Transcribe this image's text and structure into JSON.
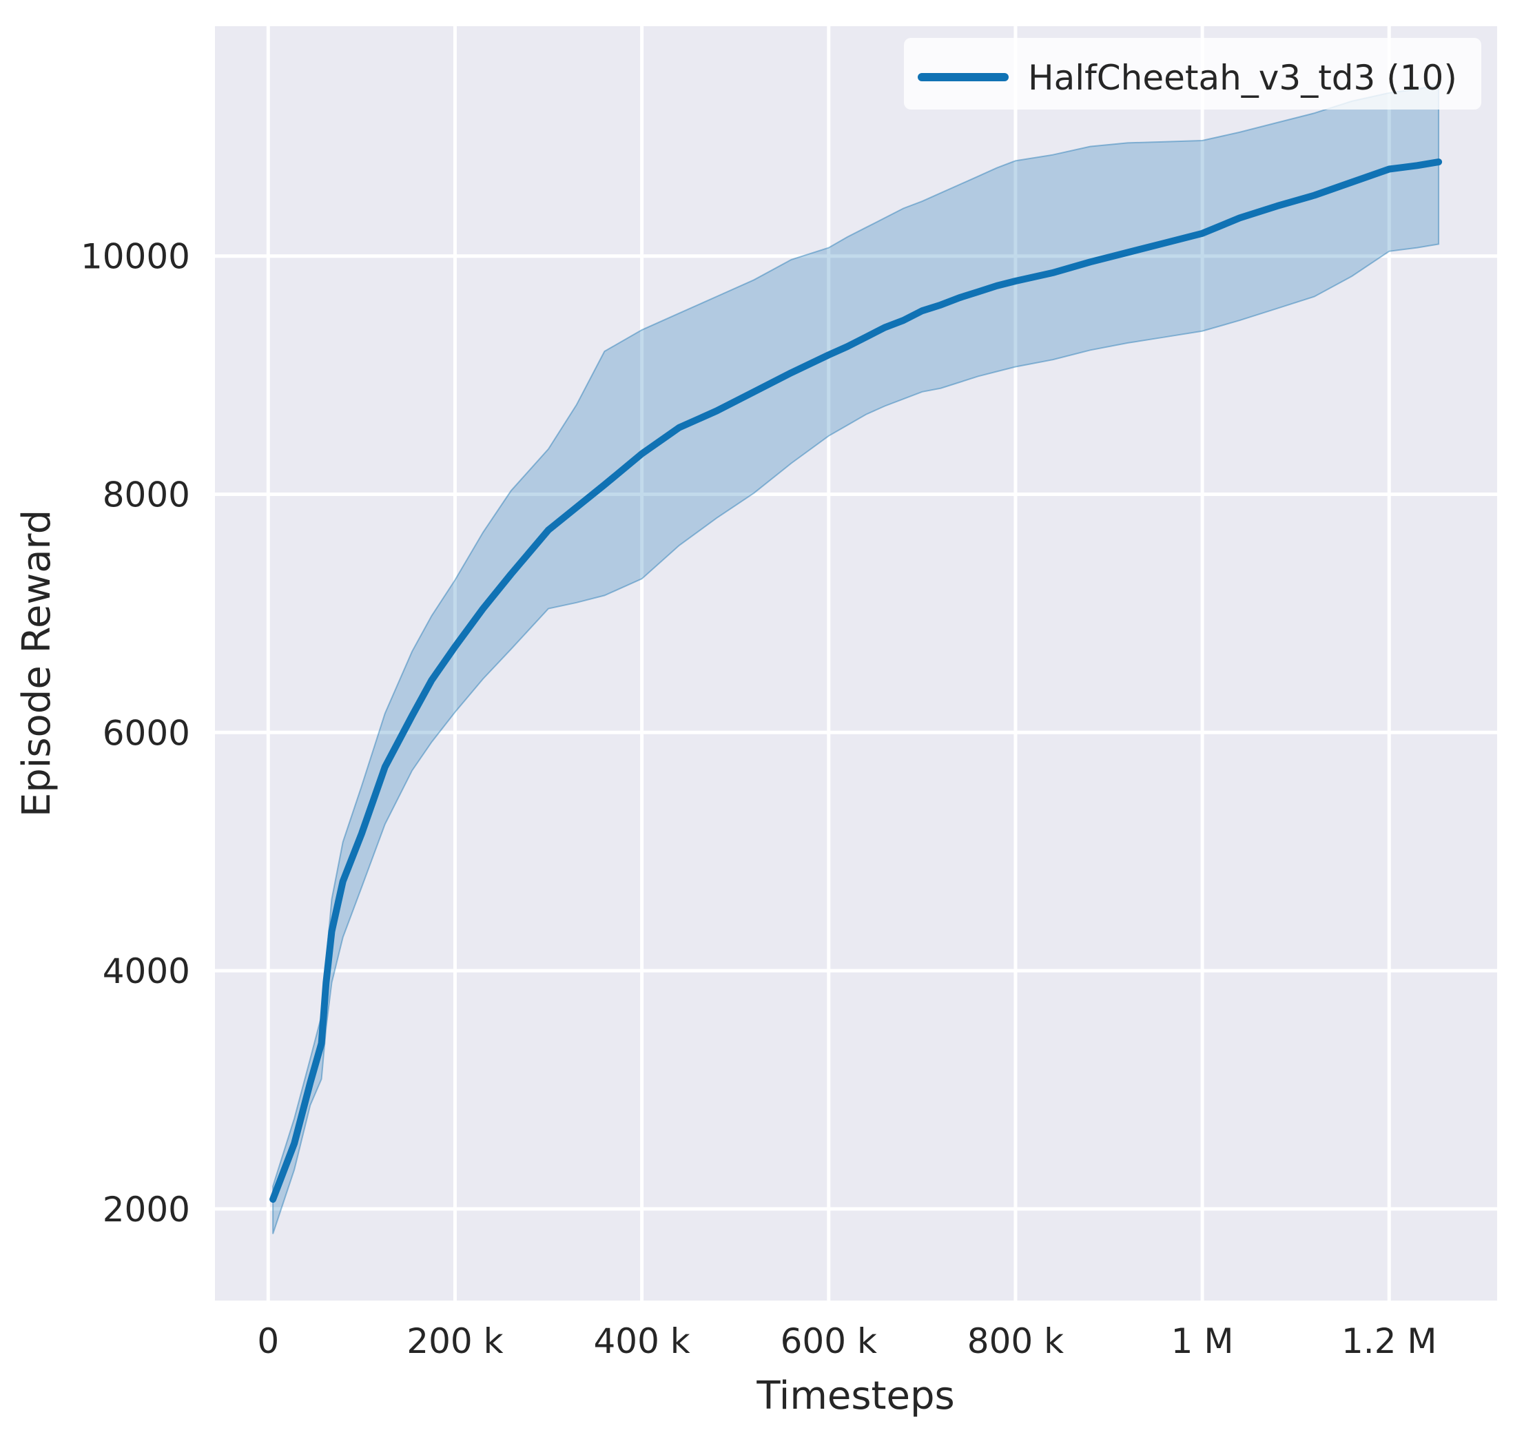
{
  "figure": {
    "xlabel": "Timesteps",
    "ylabel": "Episode Reward"
  },
  "legend": {
    "label": "HalfCheetah_v3_td3 (10)"
  },
  "colors": {
    "line": "#1072b4",
    "band_fill": "rgba(31, 119, 180, 0.27)",
    "band_edge": "rgba(31, 119, 180, 0.45)",
    "plot_bg": "#eaeaf2",
    "grid": "#ffffff",
    "text": "#262626",
    "figure_bg": "#ffffff",
    "legend_box": "rgba(255, 255, 255, 0.8)"
  },
  "chart_data": {
    "type": "line",
    "title": "",
    "xlabel": "Timesteps",
    "ylabel": "Episode Reward",
    "grid": true,
    "legend_position": "upper right",
    "xlim": [
      -57000,
      1315600
    ],
    "ylim": [
      1230,
      11930
    ],
    "x_ticks": [
      {
        "value": 0,
        "label": "0"
      },
      {
        "value": 200000,
        "label": "200 k"
      },
      {
        "value": 400000,
        "label": "400 k"
      },
      {
        "value": 600000,
        "label": "600 k"
      },
      {
        "value": 800000,
        "label": "800 k"
      },
      {
        "value": 1000000,
        "label": "1 M"
      },
      {
        "value": 1200000,
        "label": "1.2 M"
      }
    ],
    "y_ticks": [
      {
        "value": 2000,
        "label": "2000"
      },
      {
        "value": 4000,
        "label": "4000"
      },
      {
        "value": 6000,
        "label": "6000"
      },
      {
        "value": 8000,
        "label": "8000"
      },
      {
        "value": 10000,
        "label": "10000"
      }
    ],
    "series": [
      {
        "name": "HalfCheetah_v3_td3 (10)",
        "x": [
          5000,
          28000,
          45000,
          57000,
          62000,
          68000,
          80000,
          100000,
          125000,
          154000,
          175000,
          200000,
          230000,
          260000,
          300000,
          330000,
          360000,
          400000,
          440000,
          480000,
          520000,
          560000,
          600000,
          620000,
          640000,
          660000,
          680000,
          700000,
          720000,
          740000,
          760000,
          780000,
          800000,
          840000,
          880000,
          920000,
          960000,
          1000000,
          1040000,
          1080000,
          1120000,
          1160000,
          1200000,
          1230000,
          1253000
        ],
        "mean": [
          2080,
          2550,
          3060,
          3390,
          3900,
          4330,
          4750,
          5150,
          5710,
          6140,
          6440,
          6720,
          7040,
          7330,
          7700,
          7890,
          8080,
          8340,
          8560,
          8700,
          8860,
          9020,
          9170,
          9240,
          9320,
          9400,
          9460,
          9540,
          9590,
          9650,
          9700,
          9750,
          9790,
          9860,
          9950,
          10030,
          10110,
          10190,
          10320,
          10420,
          10510,
          10620,
          10730,
          10760,
          10790
        ],
        "band_lower": [
          1790,
          2330,
          2870,
          3090,
          3520,
          3900,
          4280,
          4700,
          5230,
          5680,
          5920,
          6170,
          6450,
          6700,
          7040,
          7090,
          7150,
          7290,
          7570,
          7800,
          8010,
          8260,
          8490,
          8580,
          8670,
          8740,
          8800,
          8860,
          8890,
          8940,
          8990,
          9030,
          9070,
          9130,
          9210,
          9270,
          9320,
          9370,
          9460,
          9560,
          9660,
          9830,
          10040,
          10070,
          10100
        ],
        "band_upper": [
          2190,
          2760,
          3260,
          3620,
          4080,
          4600,
          5080,
          5550,
          6160,
          6680,
          6980,
          7280,
          7680,
          8030,
          8380,
          8750,
          9200,
          9380,
          9520,
          9660,
          9800,
          9970,
          10070,
          10160,
          10240,
          10320,
          10400,
          10460,
          10530,
          10600,
          10670,
          10740,
          10800,
          10850,
          10920,
          10950,
          10960,
          10970,
          11040,
          11120,
          11200,
          11300,
          11370,
          11400,
          11440
        ]
      }
    ]
  }
}
